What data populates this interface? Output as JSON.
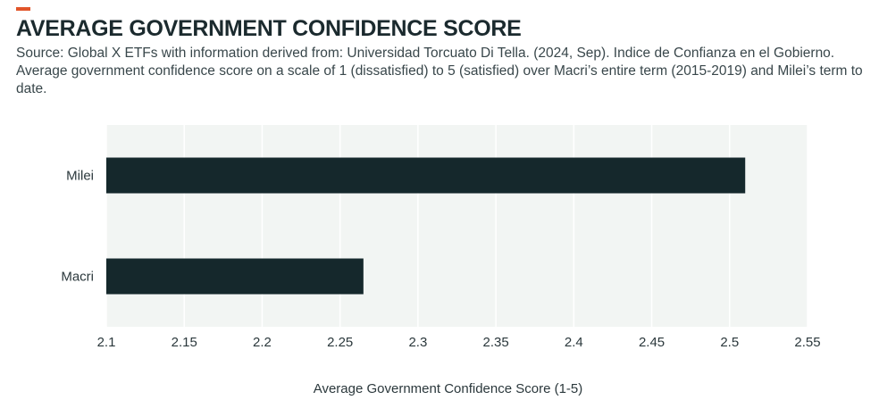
{
  "header": {
    "title": "AVERAGE GOVERNMENT CONFIDENCE SCORE",
    "subtitle": "Source: Global X ETFs with information derived from: Universidad Torcuato Di Tella. (2024, Sep). Indice de Confianza en el Gobierno. Average government confidence score on a scale of 1 (dissatisfied) to 5 (satisfied) over Macri’s entire term (2015-2019) and Milei’s term to date.",
    "accent_color": "#E1552A"
  },
  "chart_data": {
    "type": "bar",
    "orientation": "horizontal",
    "categories": [
      "Milei",
      "Macri"
    ],
    "values": [
      2.51,
      2.265
    ],
    "title": "AVERAGE GOVERNMENT CONFIDENCE SCORE",
    "xlabel": "Average Government Confidence Score (1-5)",
    "ylabel": "",
    "xlim": [
      2.1,
      2.55
    ],
    "xticks": [
      "2.1",
      "2.15",
      "2.2",
      "2.25",
      "2.3",
      "2.35",
      "2.4",
      "2.45",
      "2.5",
      "2.55"
    ],
    "grid": true,
    "legend": "none",
    "colors": {
      "bar": "#15282C",
      "plot_background": "#F2F5F3",
      "grid": "#FFFFFF",
      "text": "#2B383C"
    }
  }
}
